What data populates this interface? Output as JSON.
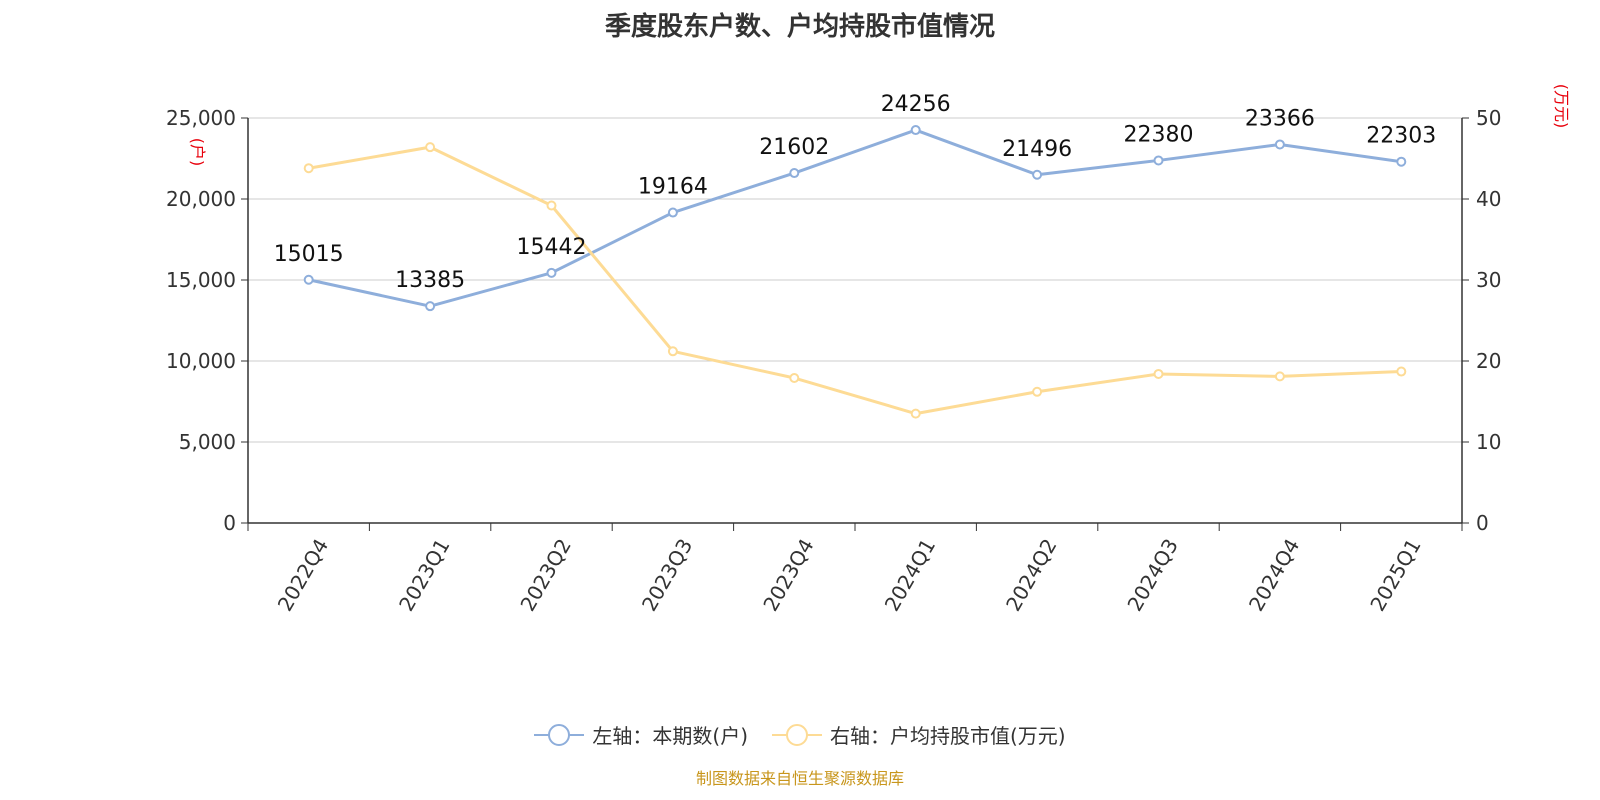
{
  "chart_data": {
    "type": "line",
    "title": "季度股东户数、户均持股市值情况",
    "categories": [
      "2022Q4",
      "2023Q1",
      "2023Q2",
      "2023Q3",
      "2023Q4",
      "2024Q1",
      "2024Q2",
      "2024Q3",
      "2024Q4",
      "2025Q1"
    ],
    "series": [
      {
        "name": "左轴：本期数(户)",
        "axis": "left",
        "color": "#8eaedb",
        "values": [
          15015,
          13385,
          15442,
          19164,
          21602,
          24256,
          21496,
          22380,
          23366,
          22303
        ],
        "data_labels": [
          "15015",
          "13385",
          "15442",
          "19164",
          "21602",
          "24256",
          "21496",
          "22380",
          "23366",
          "22303"
        ]
      },
      {
        "name": "右轴：户均持股市值(万元)",
        "axis": "right",
        "color": "#fddb95",
        "values": [
          43.8,
          46.4,
          39.2,
          21.2,
          17.9,
          13.5,
          16.2,
          18.4,
          18.1,
          18.7
        ]
      }
    ],
    "y_left": {
      "label": "(户)",
      "min": 0,
      "max": 25000,
      "ticks": [
        0,
        5000,
        10000,
        15000,
        20000,
        25000
      ],
      "tick_labels": [
        "0",
        "5,000",
        "10,000",
        "15,000",
        "20,000",
        "25,000"
      ]
    },
    "y_right": {
      "label": "(万元)",
      "min": 0,
      "max": 50,
      "ticks": [
        0,
        10,
        20,
        30,
        40,
        50
      ],
      "tick_labels": [
        "0",
        "10",
        "20",
        "30",
        "40",
        "50"
      ]
    },
    "grid": true,
    "legend_position": "bottom"
  },
  "legend": {
    "left_series_label": "左轴：本期数(户)",
    "right_series_label": "右轴：户均持股市值(万元)"
  },
  "source_note": "制图数据来自恒生聚源数据库",
  "colors": {
    "label_red": "#e8000b",
    "axis": "#333333",
    "grid": "#cccccc"
  }
}
